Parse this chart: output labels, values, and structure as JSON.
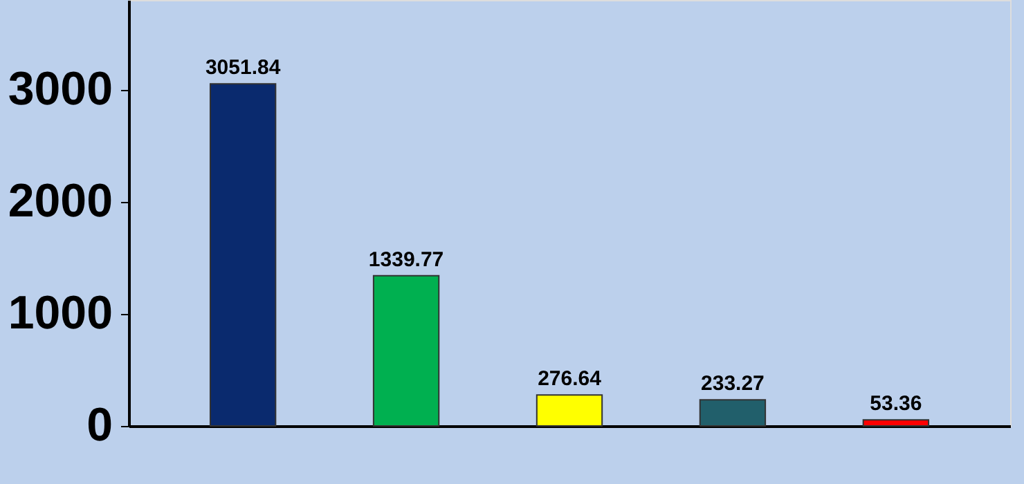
{
  "chart_data": {
    "type": "bar",
    "categories": [
      null,
      null,
      null,
      null,
      null
    ],
    "values": [
      3051.84,
      1339.77,
      276.64,
      233.27,
      53.36
    ],
    "colors": [
      "#0a2a6e",
      "#00b050",
      "#ffff00",
      "#215f6b",
      "#ff0000"
    ],
    "ylim": [
      0,
      3800
    ],
    "yticks": [
      0,
      1000,
      2000,
      3000
    ],
    "grid": false,
    "data_labels": true,
    "tick_labels": "y"
  }
}
